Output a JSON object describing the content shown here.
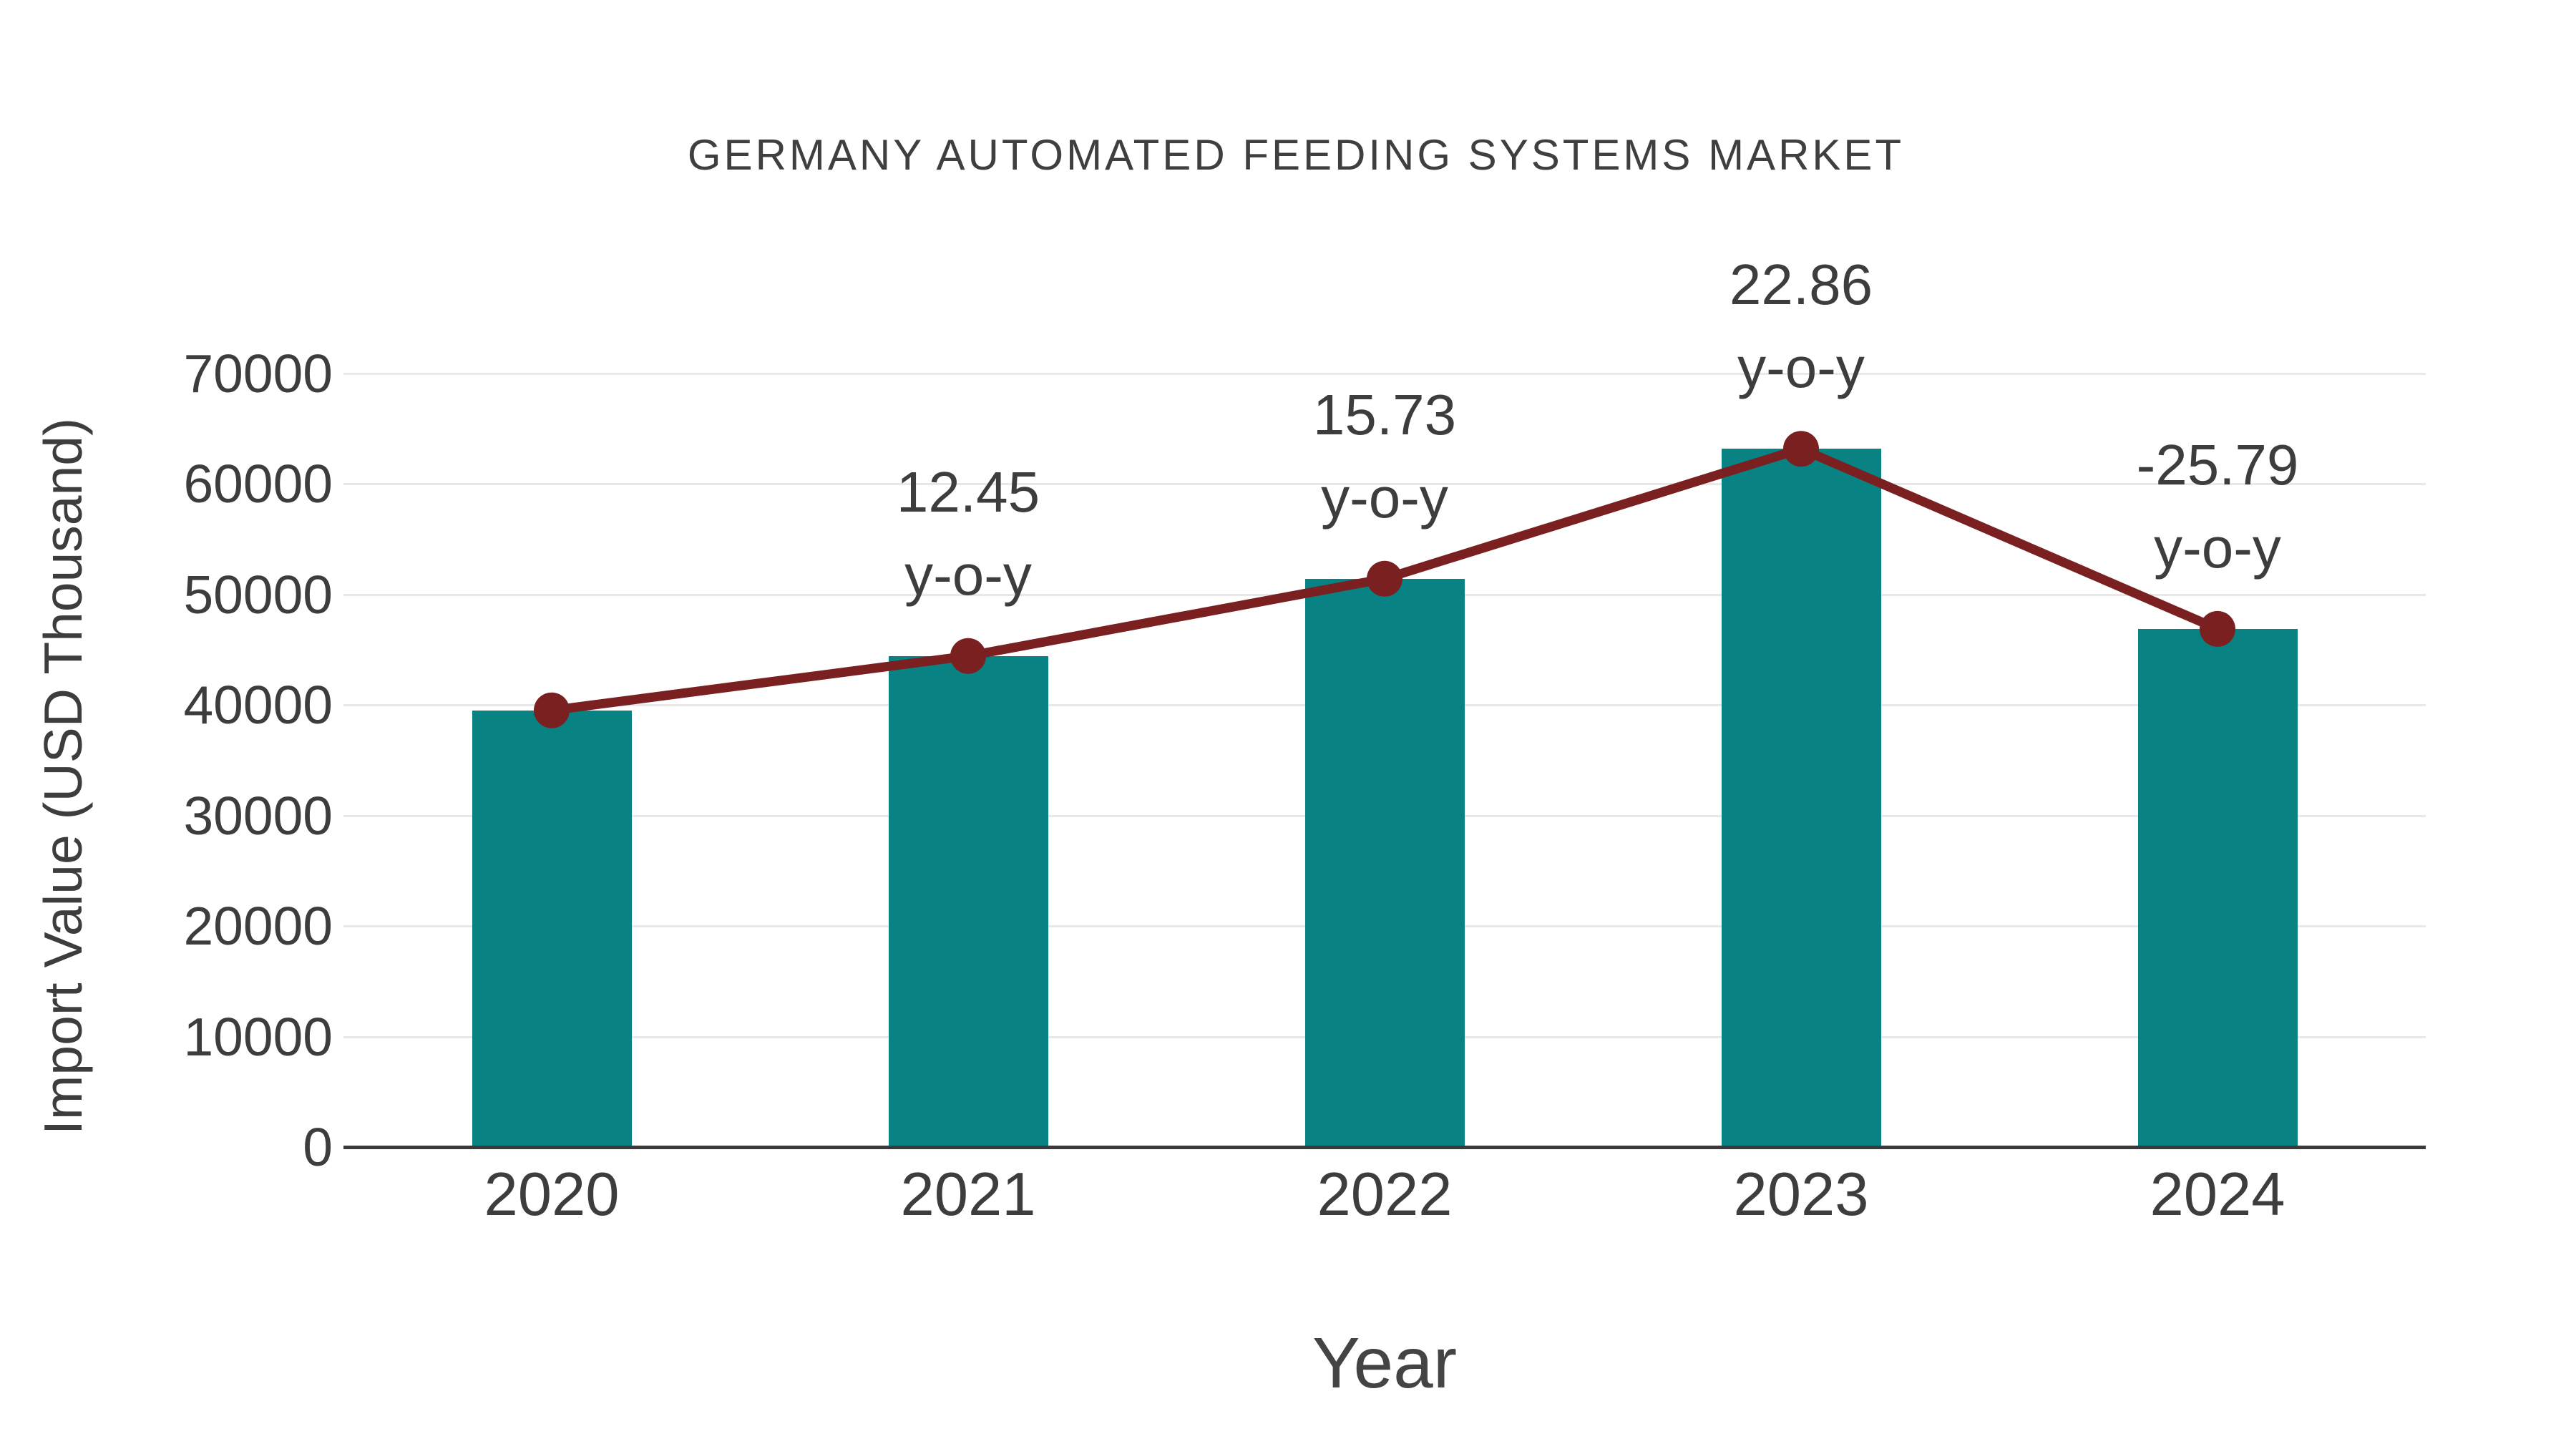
{
  "chart_data": {
    "type": "bar",
    "title": "GERMANY AUTOMATED FEEDING SYSTEMS MARKET",
    "xlabel": "Year",
    "ylabel": "Import Value (USD Thousand)",
    "categories": [
      "2020",
      "2021",
      "2022",
      "2023",
      "2024"
    ],
    "values": [
      39500,
      44418,
      51405,
      63156,
      46868
    ],
    "yticks": [
      0,
      10000,
      20000,
      30000,
      40000,
      50000,
      60000,
      70000
    ],
    "ylim": [
      0,
      72000
    ],
    "grid": true,
    "legend": "none",
    "line_overlay": {
      "name": "import-value-trend",
      "follows": "values",
      "color": "#7b2020"
    },
    "yoy_labels": [
      null,
      "12.45",
      "15.73",
      "22.86",
      "-25.79"
    ],
    "yoy_suffix": "y-o-y",
    "colors": {
      "bar": "#088283",
      "line": "#7b2020",
      "marker": "#7b2020",
      "grid": "#e8e8e8",
      "axis": "#3a3a3a",
      "text": "#3d3d3d",
      "title_text": "#3f3f3f"
    }
  }
}
